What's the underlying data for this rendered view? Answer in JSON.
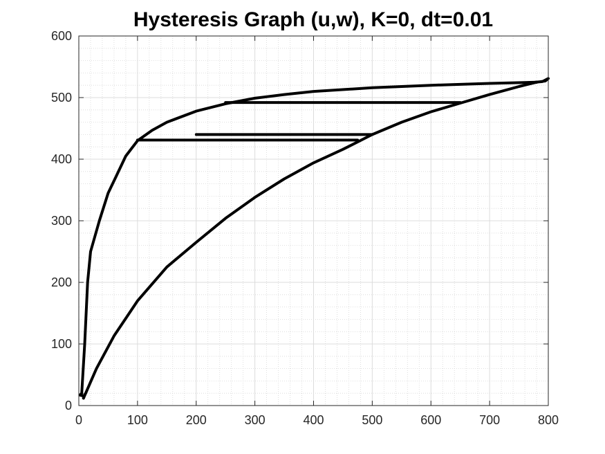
{
  "chart_data": {
    "type": "line",
    "title": "Hysteresis Graph (u,w), K=0, dt=0.01",
    "xlabel": "",
    "ylabel": "",
    "xlim": [
      0,
      800
    ],
    "ylim": [
      0,
      600
    ],
    "xticks": [
      0,
      100,
      200,
      300,
      400,
      500,
      600,
      700,
      800
    ],
    "yticks": [
      0,
      100,
      200,
      300,
      400,
      500,
      600
    ],
    "grid": true,
    "minor_grid": true,
    "line_color": "#000000",
    "series": [
      {
        "points": [
          [
            8,
            12
          ],
          [
            30,
            60
          ],
          [
            60,
            113
          ],
          [
            100,
            170
          ],
          [
            150,
            225
          ],
          [
            200,
            265
          ],
          [
            250,
            304
          ],
          [
            300,
            338
          ],
          [
            350,
            368
          ],
          [
            400,
            394
          ],
          [
            450,
            416
          ],
          [
            500,
            440
          ],
          [
            550,
            460
          ],
          [
            600,
            477
          ],
          [
            650,
            491
          ],
          [
            700,
            505
          ],
          [
            750,
            518
          ],
          [
            780,
            525
          ]
        ]
      },
      {
        "points": [
          [
            5,
            20
          ],
          [
            10,
            100
          ],
          [
            15,
            200
          ],
          [
            20,
            250
          ],
          [
            35,
            300
          ],
          [
            50,
            345
          ],
          [
            65,
            375
          ],
          [
            80,
            405
          ],
          [
            100,
            430
          ],
          [
            125,
            447
          ],
          [
            150,
            460
          ],
          [
            200,
            478
          ],
          [
            250,
            490
          ],
          [
            300,
            499
          ],
          [
            350,
            505
          ],
          [
            400,
            510
          ],
          [
            500,
            516
          ],
          [
            600,
            520
          ],
          [
            700,
            523
          ],
          [
            780,
            525
          ]
        ]
      },
      {
        "points": [
          [
            780,
            525
          ],
          [
            795,
            527
          ],
          [
            800,
            531
          ],
          [
            790,
            526
          ],
          [
            778,
            525
          ]
        ]
      },
      {
        "points": [
          [
            5,
            20
          ],
          [
            3,
            18
          ],
          [
            2,
            17
          ],
          [
            6,
            16
          ],
          [
            9,
            15
          ],
          [
            10,
            18
          ],
          [
            8,
            12
          ]
        ]
      },
      {
        "points": [
          [
            250,
            492
          ],
          [
            650,
            492
          ]
        ]
      },
      {
        "points": [
          [
            200,
            440
          ],
          [
            500,
            440
          ]
        ]
      },
      {
        "points": [
          [
            100,
            431
          ],
          [
            475,
            431
          ]
        ]
      }
    ]
  }
}
